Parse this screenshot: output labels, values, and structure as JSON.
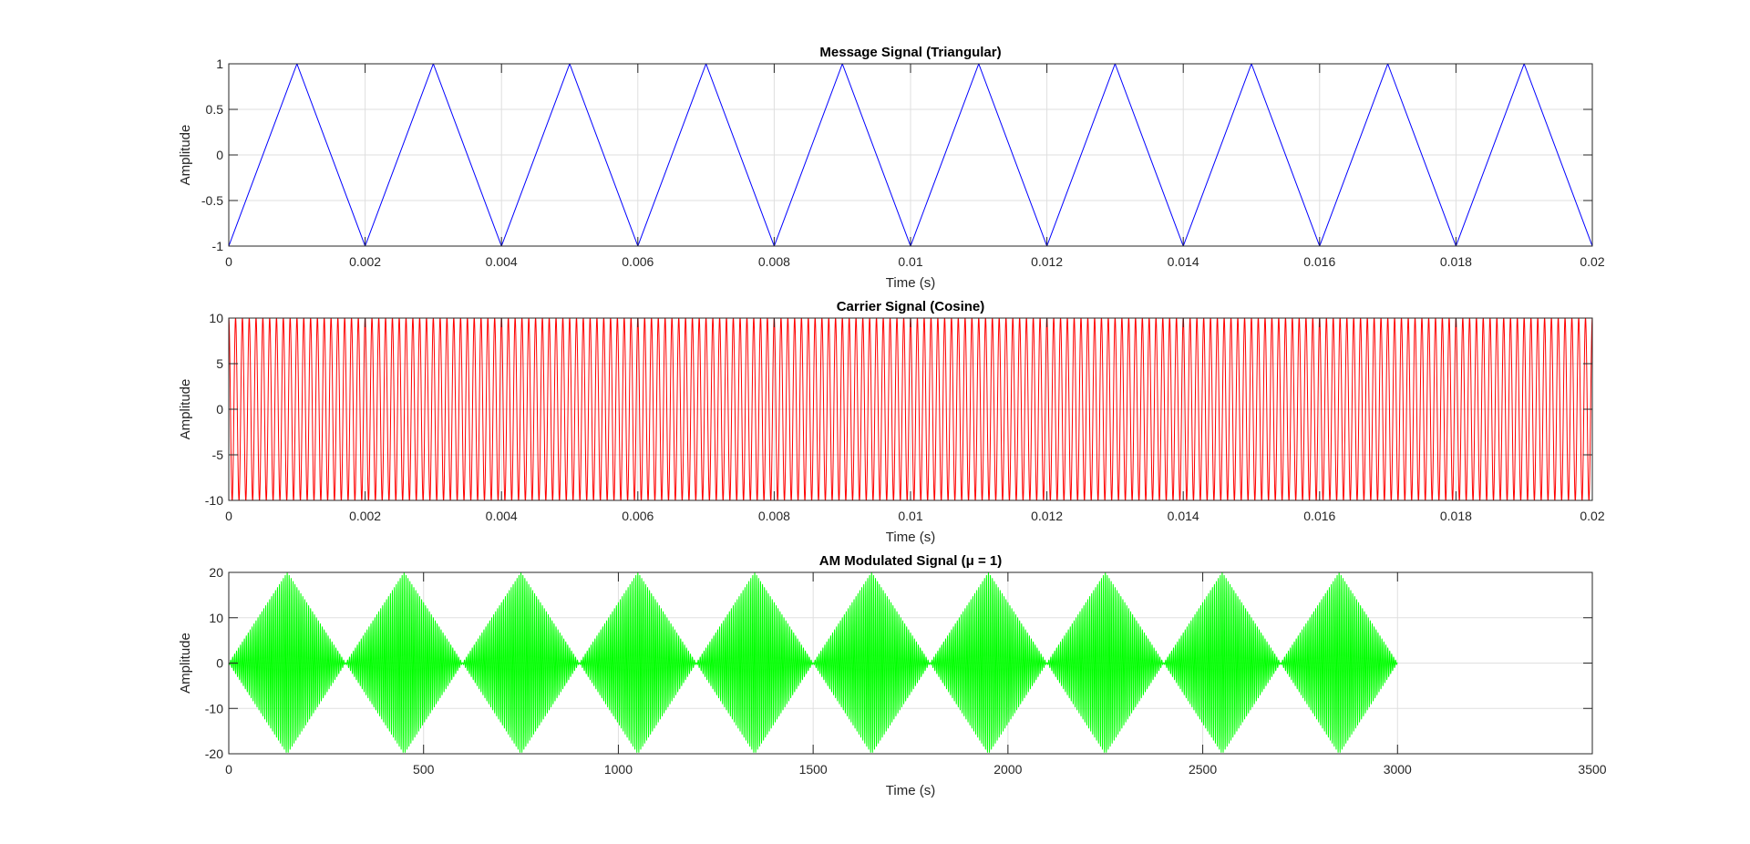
{
  "figure": {
    "background": "#ffffff",
    "axis_color": "#262626",
    "grid_color": "#dfdfdf"
  },
  "chart_data": [
    {
      "type": "line",
      "title": "Message Signal (Triangular)",
      "xlabel": "Time (s)",
      "ylabel": "Amplitude",
      "xlim": [
        0,
        0.02
      ],
      "ylim": [
        -1,
        1
      ],
      "xticks": [
        0,
        0.002,
        0.004,
        0.006,
        0.008,
        0.01,
        0.012,
        0.014,
        0.016,
        0.018,
        0.02
      ],
      "xtick_labels": [
        "0",
        "0.002",
        "0.004",
        "0.006",
        "0.008",
        "0.01",
        "0.012",
        "0.014",
        "0.016",
        "0.018",
        "0.02"
      ],
      "yticks": [
        -1,
        -0.5,
        0,
        0.5,
        1
      ],
      "ytick_labels": [
        "-1",
        "-0.5",
        "0",
        "0.5",
        "1"
      ],
      "grid": true,
      "series": [
        {
          "color": "#0000ff",
          "x": [
            0,
            0.001,
            0.002,
            0.003,
            0.004,
            0.005,
            0.006,
            0.007,
            0.008,
            0.009,
            0.01,
            0.011,
            0.012,
            0.013,
            0.014,
            0.015,
            0.016,
            0.017,
            0.018,
            0.019,
            0.02
          ],
          "y": [
            -1,
            1,
            -1,
            1,
            -1,
            1,
            -1,
            1,
            -1,
            1,
            -1,
            1,
            -1,
            1,
            -1,
            1,
            -1,
            1,
            -1,
            1,
            -1
          ]
        }
      ]
    },
    {
      "type": "line",
      "title": "Carrier Signal (Cosine)",
      "xlabel": "Time (s)",
      "ylabel": "Amplitude",
      "xlim": [
        0,
        0.02
      ],
      "ylim": [
        -10,
        10
      ],
      "xticks": [
        0,
        0.002,
        0.004,
        0.006,
        0.008,
        0.01,
        0.012,
        0.014,
        0.016,
        0.018,
        0.02
      ],
      "xtick_labels": [
        "0",
        "0.002",
        "0.004",
        "0.006",
        "0.008",
        "0.01",
        "0.012",
        "0.014",
        "0.016",
        "0.018",
        "0.02"
      ],
      "yticks": [
        -10,
        -5,
        0,
        5,
        10
      ],
      "ytick_labels": [
        "-10",
        "-5",
        "0",
        "5",
        "10"
      ],
      "grid": true,
      "series": [
        {
          "color": "#ff0000",
          "function": "cosine",
          "amplitude": 10,
          "frequency_hz": 10000,
          "x_range": [
            0,
            0.02
          ]
        }
      ]
    },
    {
      "type": "line",
      "title": "AM Modulated Signal (μ = 1)",
      "xlabel": "Time (s)",
      "ylabel": "Amplitude",
      "xlim": [
        0,
        3500
      ],
      "ylim": [
        -20,
        20
      ],
      "xticks": [
        0,
        500,
        1000,
        1500,
        2000,
        2500,
        3000,
        3500
      ],
      "xtick_labels": [
        "0",
        "500",
        "1000",
        "1500",
        "2000",
        "2500",
        "3000",
        "3500"
      ],
      "yticks": [
        -20,
        -10,
        0,
        10,
        20
      ],
      "ytick_labels": [
        "-20",
        "-10",
        "0",
        "10",
        "20"
      ],
      "grid": true,
      "series": [
        {
          "color": "#00ff00",
          "function": "am_triangular_envelope",
          "x_range": [
            0,
            3000
          ],
          "envelope_x": [
            0,
            150,
            300,
            450,
            600,
            750,
            900,
            1050,
            1200,
            1350,
            1500,
            1650,
            1800,
            1950,
            2100,
            2250,
            2400,
            2550,
            2700,
            2850,
            3000
          ],
          "envelope_y": [
            0,
            20,
            0,
            20,
            0,
            20,
            0,
            20,
            0,
            20,
            0,
            20,
            0,
            20,
            0,
            20,
            0,
            20,
            0,
            20,
            0
          ],
          "carrier_cycles_per_unit": 0.2
        }
      ]
    }
  ]
}
